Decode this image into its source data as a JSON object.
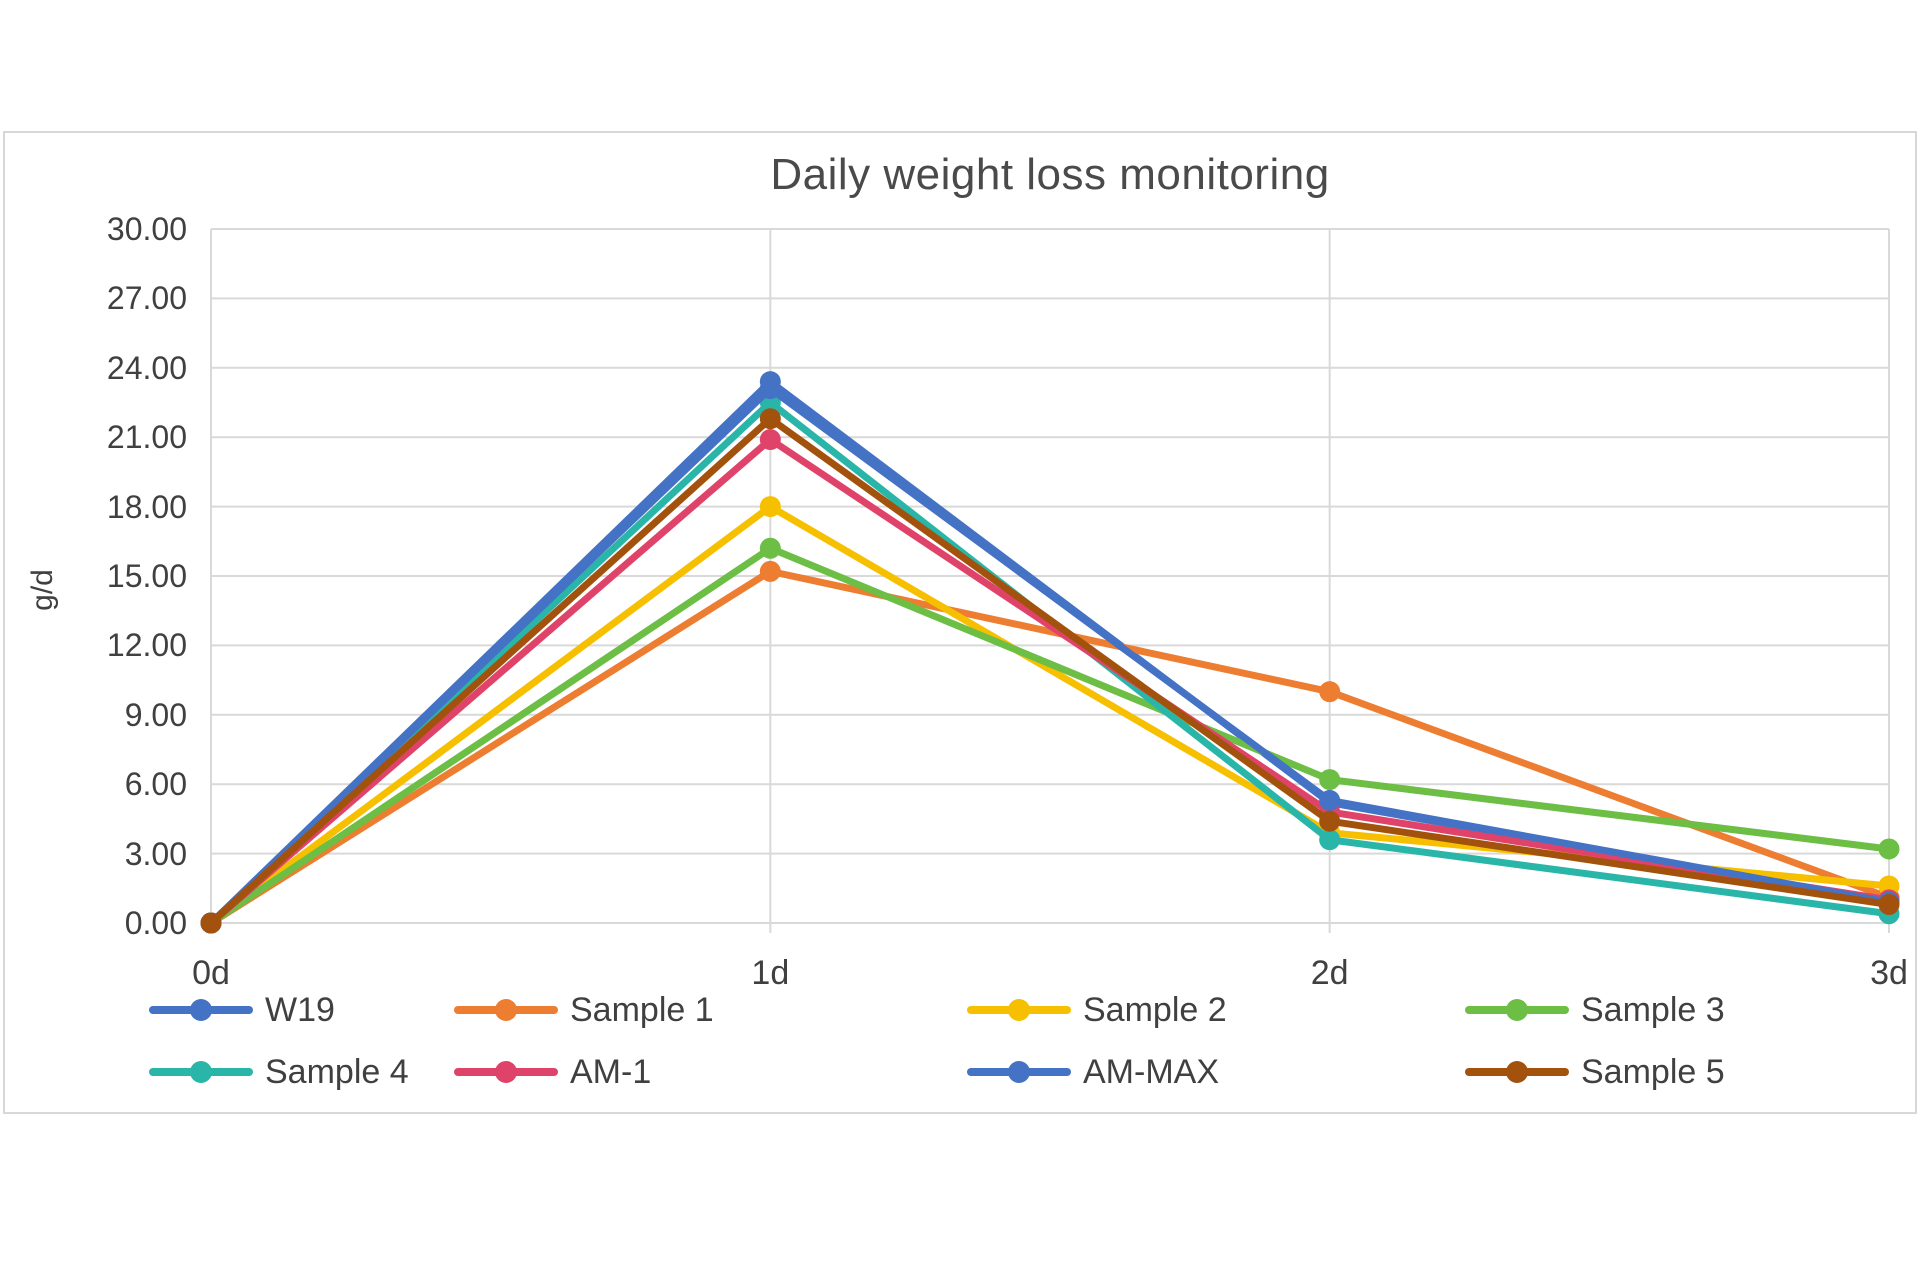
{
  "chart": {
    "title": "Daily weight loss monitoring",
    "y_axis_title": "g/d",
    "y_tick_labels": [
      "30.00",
      "27.00",
      "24.00",
      "21.00",
      "18.00",
      "15.00",
      "12.00",
      "9.00",
      "6.00",
      "3.00",
      "0.00"
    ],
    "x_tick_labels": [
      "0d",
      "1d",
      "2d",
      "3d"
    ]
  },
  "chart_data": {
    "type": "line",
    "title": "Daily weight loss monitoring",
    "xlabel": "",
    "ylabel": "g/d",
    "categories": [
      "0d",
      "1d",
      "2d",
      "3d"
    ],
    "ylim": [
      0,
      30
    ],
    "ytick_step": 3,
    "grid": true,
    "legend_position": "bottom",
    "series": [
      {
        "name": "W19",
        "color": "#4472C4",
        "values": [
          0.0,
          23.4,
          5.2,
          0.9
        ]
      },
      {
        "name": "Sample 1",
        "color": "#ED7D31",
        "values": [
          0.0,
          15.2,
          10.0,
          1.1
        ]
      },
      {
        "name": "Sample 2",
        "color": "#F6C000",
        "values": [
          0.0,
          18.0,
          3.9,
          1.6
        ]
      },
      {
        "name": "Sample 3",
        "color": "#6CBE45",
        "values": [
          0.0,
          16.2,
          6.2,
          3.2
        ]
      },
      {
        "name": "Sample 4",
        "color": "#29B6A8",
        "values": [
          0.0,
          22.5,
          3.6,
          0.4
        ]
      },
      {
        "name": "AM-1",
        "color": "#E0436A",
        "values": [
          0.0,
          20.9,
          4.8,
          1.0
        ]
      },
      {
        "name": "AM-MAX",
        "color": "#4472C4",
        "values": [
          0.0,
          23.1,
          5.3,
          0.9
        ]
      },
      {
        "name": "Sample 5",
        "color": "#A3520E",
        "values": [
          0.0,
          21.8,
          4.4,
          0.8
        ]
      }
    ],
    "style_colors": {
      "grid": "#D9D9D9",
      "axis_text": "#404040",
      "title_text": "#4A4A4A",
      "chart_border": "#D8D8D8"
    }
  }
}
